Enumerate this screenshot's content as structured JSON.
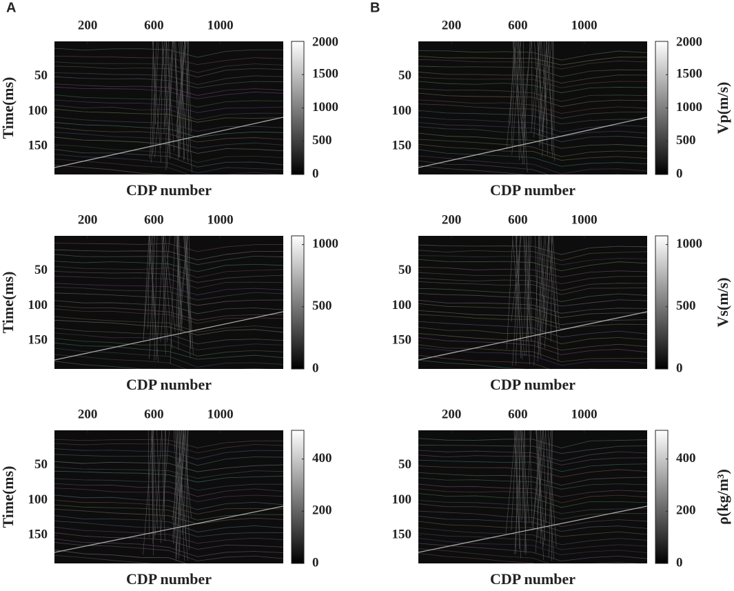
{
  "chart_data": [
    {
      "type": "heatmap",
      "panel_label": "A",
      "xlabel": "CDP number",
      "ylabel": "Time(ms)",
      "xlim": [
        0,
        1380
      ],
      "xticks": [
        200,
        600,
        1000
      ],
      "ylim": [
        0,
        190
      ],
      "y_inverted": true,
      "yticks": [
        50,
        100,
        150
      ],
      "clim": [
        0,
        2000
      ],
      "cticks": [
        0,
        500,
        1000,
        1500,
        2000
      ]
    },
    {
      "type": "heatmap",
      "panel_label": "B",
      "xlabel": "CDP number",
      "colorbar_label": "Vp(m/s)",
      "xlim": [
        0,
        1380
      ],
      "xticks": [
        200,
        600,
        1000
      ],
      "ylim": [
        0,
        190
      ],
      "y_inverted": true,
      "yticks": [
        50,
        100,
        150
      ],
      "clim": [
        0,
        2000
      ],
      "cticks": [
        0,
        500,
        1000,
        1500,
        2000
      ]
    },
    {
      "type": "heatmap",
      "xlabel": "CDP number",
      "ylabel": "Time(ms)",
      "xlim": [
        0,
        1380
      ],
      "xticks": [
        200,
        600,
        1000
      ],
      "ylim": [
        0,
        190
      ],
      "y_inverted": true,
      "yticks": [
        50,
        100,
        150
      ],
      "clim": [
        0,
        1070
      ],
      "cticks": [
        0,
        500,
        1000
      ]
    },
    {
      "type": "heatmap",
      "xlabel": "CDP number",
      "colorbar_label": "Vs(m/s)",
      "xlim": [
        0,
        1380
      ],
      "xticks": [
        200,
        600,
        1000
      ],
      "ylim": [
        0,
        190
      ],
      "y_inverted": true,
      "yticks": [
        50,
        100,
        150
      ],
      "clim": [
        0,
        1070
      ],
      "cticks": [
        0,
        500,
        1000
      ]
    },
    {
      "type": "heatmap",
      "xlabel": "CDP number",
      "ylabel": "Time(ms)",
      "xlim": [
        0,
        1380
      ],
      "xticks": [
        200,
        600,
        1000
      ],
      "ylim": [
        0,
        190
      ],
      "y_inverted": true,
      "yticks": [
        50,
        100,
        150
      ],
      "clim": [
        0,
        510
      ],
      "cticks": [
        0,
        200,
        400
      ]
    },
    {
      "type": "heatmap",
      "xlabel": "CDP number",
      "colorbar_label": "ρ(kg/m³)",
      "xlim": [
        0,
        1380
      ],
      "xticks": [
        200,
        600,
        1000
      ],
      "ylim": [
        0,
        190
      ],
      "y_inverted": true,
      "yticks": [
        50,
        100,
        150
      ],
      "clim": [
        0,
        510
      ],
      "cticks": [
        0,
        200,
        400
      ]
    }
  ]
}
